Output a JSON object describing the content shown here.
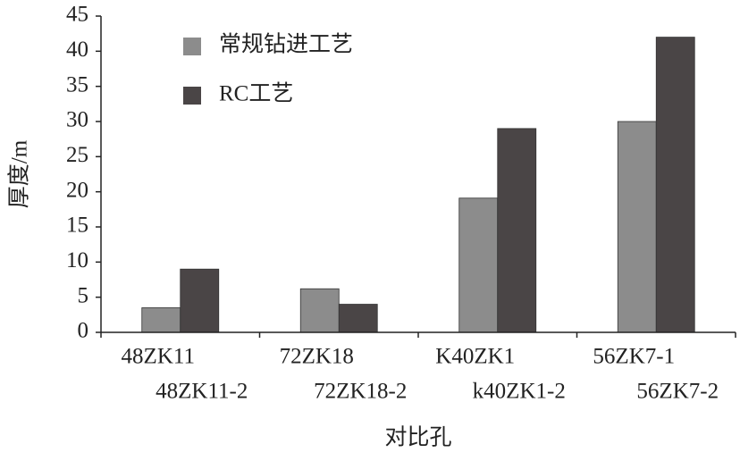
{
  "chart_data": {
    "type": "bar",
    "xlabel": "对比孔",
    "ylabel": "厚度/m",
    "categories": [
      [
        "48ZK11",
        "48ZK11-2"
      ],
      [
        "72ZK18",
        "72ZK18-2"
      ],
      [
        "K40ZK1",
        "k40ZK1-2"
      ],
      [
        "56ZK7-1",
        "56ZK7-2"
      ]
    ],
    "series": [
      {
        "name": "常规钻进工艺",
        "color": "#8c8c8c",
        "values": [
          3.5,
          6.2,
          19.1,
          30
        ]
      },
      {
        "name": "RC工艺",
        "color": "#4a4546",
        "values": [
          9,
          4,
          29,
          42
        ]
      }
    ],
    "ylim": [
      0,
      45
    ],
    "yticks": [
      0,
      5,
      10,
      15,
      20,
      25,
      30,
      35,
      40,
      45
    ],
    "grid": false,
    "legend": "top-left"
  }
}
